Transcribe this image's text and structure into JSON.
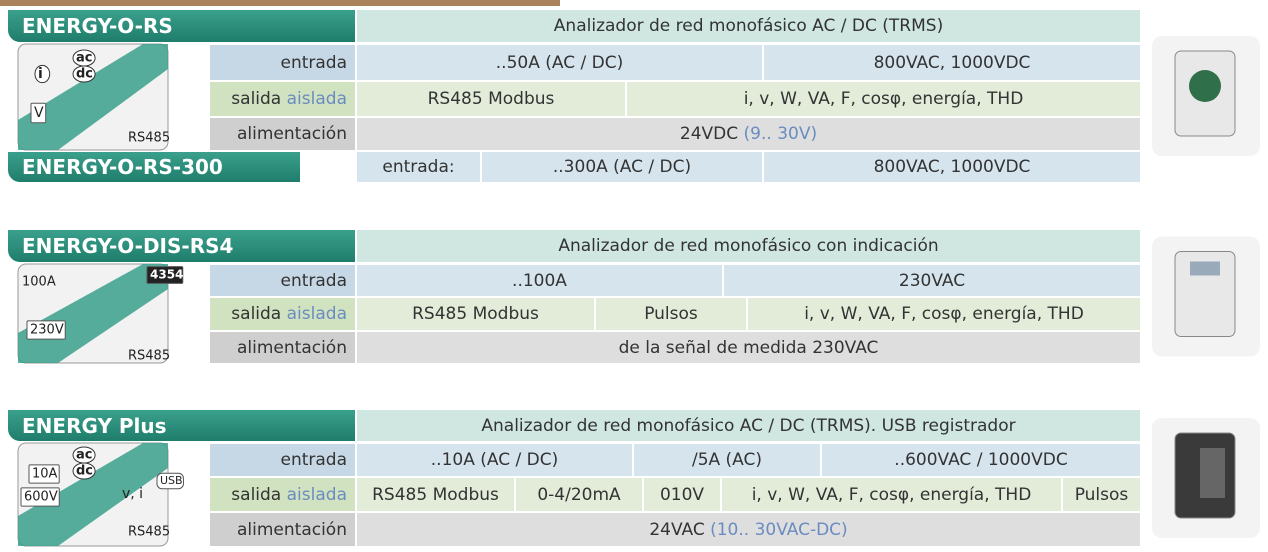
{
  "products": [
    {
      "name": "ENERGY-O-RS",
      "description": "Analizador de red monofásico AC / DC (TRMS)",
      "icon": [
        "ac",
        "dc",
        "i",
        "V",
        "RS485"
      ],
      "rows": [
        {
          "label": {
            "text": "entrada"
          },
          "cells": [
            {
              "text": "..50A (AC / DC)"
            },
            {
              "text": "800VAC, 1000VDC"
            }
          ]
        },
        {
          "label": {
            "text": "salida",
            "note": "aislada"
          },
          "cells": [
            {
              "text": "RS485 Modbus"
            },
            {
              "text": "i, v, W, VA, F, cosφ, energía, THD"
            }
          ]
        },
        {
          "label": {
            "text": "alimentación"
          },
          "cells": [
            {
              "text": "24VDC",
              "note": "(9.. 30V)"
            }
          ]
        }
      ],
      "variant": {
        "name": "ENERGY-O-RS-300",
        "label": "entrada:",
        "cells": [
          {
            "text": "..300A (AC / DC)"
          },
          {
            "text": "800VAC, 1000VDC"
          }
        ]
      }
    },
    {
      "name": "ENERGY-O-DIS-RS4",
      "description": "Analizador de red monofásico con indicación",
      "icon": [
        "100A",
        "4354",
        "230V",
        "RS485"
      ],
      "rows": [
        {
          "label": {
            "text": "entrada"
          },
          "cells": [
            {
              "text": "..100A"
            },
            {
              "text": "230VAC"
            }
          ]
        },
        {
          "label": {
            "text": "salida",
            "note": "aislada"
          },
          "cells": [
            {
              "text": "RS485 Modbus"
            },
            {
              "text": "Pulsos"
            },
            {
              "text": "i, v, W, VA, F, cosφ, energía, THD"
            }
          ]
        },
        {
          "label": {
            "text": "alimentación"
          },
          "cells": [
            {
              "text": "de la señal de medida 230VAC"
            }
          ]
        }
      ]
    },
    {
      "name": "ENERGY Plus",
      "description": "Analizador de red monofásico AC / DC (TRMS). USB registrador",
      "icon": [
        "ac",
        "dc",
        "10A",
        "600V",
        "v, i",
        "USB",
        "RS485"
      ],
      "rows": [
        {
          "label": {
            "text": "entrada"
          },
          "cells": [
            {
              "text": "..10A (AC / DC)"
            },
            {
              "text": "/5A (AC)"
            },
            {
              "text": "..600VAC / 1000VDC"
            }
          ]
        },
        {
          "label": {
            "text": "salida",
            "note": "aislada"
          },
          "cells": [
            {
              "text": "RS485 Modbus"
            },
            {
              "text": "0-4/20mA"
            },
            {
              "text": "010V"
            },
            {
              "text": "i, v, W, VA, F, cosφ, energía, THD"
            },
            {
              "text": "Pulsos"
            }
          ]
        },
        {
          "label": {
            "text": "alimentación"
          },
          "cells": [
            {
              "text": "24VAC",
              "note": "(10.. 30VAC-DC)"
            }
          ]
        }
      ]
    }
  ]
}
